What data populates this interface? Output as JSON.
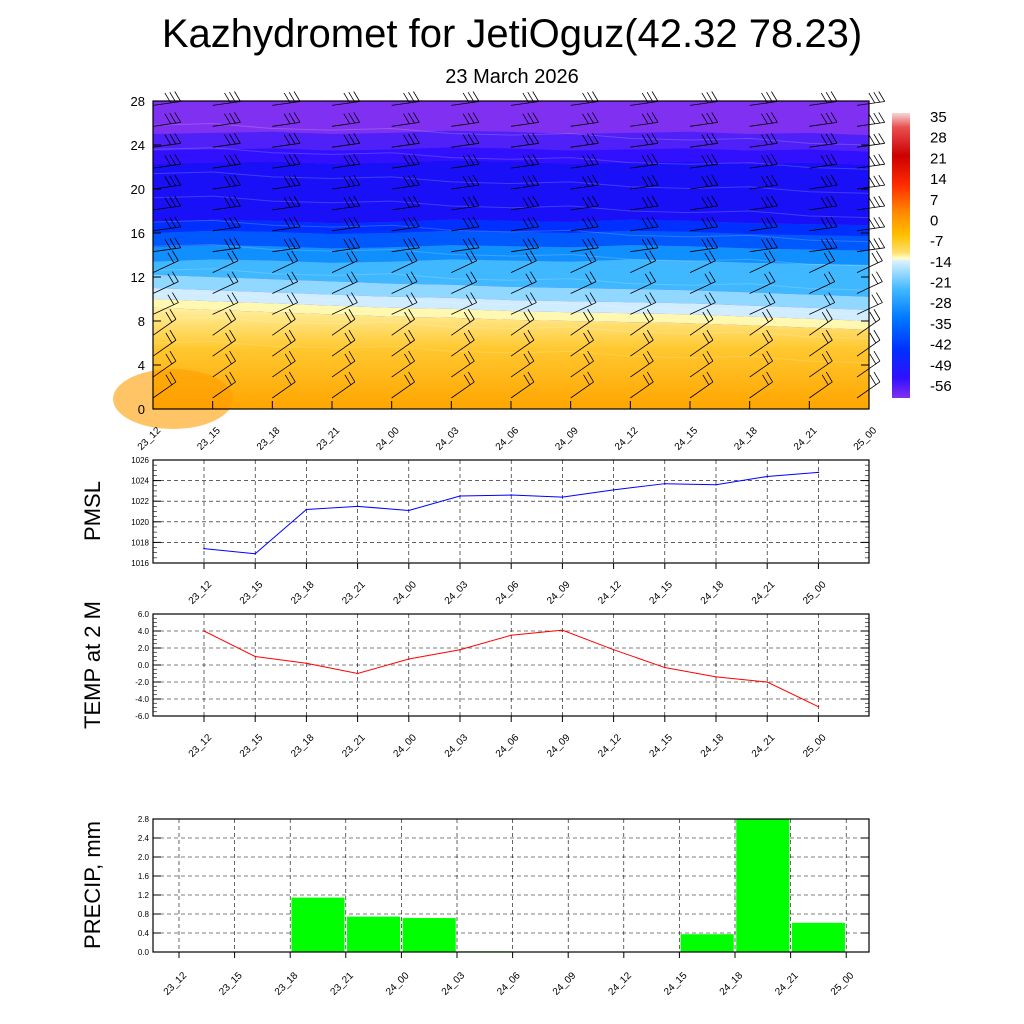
{
  "header": {
    "title": "Kazhydromet for JetiOguz(42.32 78.23)",
    "subtitle": "23 March 2026"
  },
  "chart_data": [
    {
      "type": "heatmap",
      "description_of_content": "temperature cross-section with wind barbs",
      "x_tick_labels": [
        "23_12",
        "23_15",
        "23_18",
        "23_21",
        "24_00",
        "24_03",
        "24_06",
        "24_09",
        "24_12",
        "24_15",
        "24_18",
        "24_21",
        "25_00"
      ],
      "y_ticks": [
        0,
        4,
        8,
        12,
        16,
        20,
        24,
        28
      ],
      "ylim": [
        0,
        28
      ],
      "colorbar_labels": [
        35,
        28,
        21,
        14,
        7,
        0,
        -7,
        -14,
        -21,
        -28,
        -35,
        -42,
        -49,
        -56
      ],
      "freezing_level": [
        10.0,
        9.8,
        9.6,
        9.4,
        9.2,
        9.1,
        8.9,
        8.8,
        8.7,
        8.6,
        8.4,
        8.2,
        8.0
      ],
      "cold_core_top": [
        23.5,
        23.6,
        23.7,
        23.5,
        23.6,
        23.8,
        23.7,
        23.5,
        23.6,
        23.7,
        23.5,
        23.6,
        23.4
      ],
      "cold_core_bottom": [
        16.0,
        16.2,
        16.1,
        15.9,
        16.0,
        16.2,
        16.1,
        16.0,
        16.2,
        16.1,
        15.9,
        15.8,
        15.7
      ]
    },
    {
      "type": "line",
      "ylabel": "PMSL",
      "x": [
        "23_12",
        "23_15",
        "23_18",
        "23_21",
        "24_00",
        "24_03",
        "24_06",
        "24_09",
        "24_12",
        "24_15",
        "24_18",
        "24_21",
        "25_00"
      ],
      "values": [
        1017.4,
        1016.9,
        1021.2,
        1021.5,
        1021.1,
        1022.5,
        1022.6,
        1022.4,
        1023.1,
        1023.7,
        1023.6,
        1024.4,
        1024.8
      ],
      "ylim": [
        1016,
        1026
      ],
      "y_ticks": [
        1016,
        1018,
        1020,
        1022,
        1024,
        1026
      ],
      "color": "#0000ff"
    },
    {
      "type": "line",
      "ylabel": "TEMP at 2 M",
      "x": [
        "23_12",
        "23_15",
        "23_18",
        "23_21",
        "24_00",
        "24_03",
        "24_06",
        "24_09",
        "24_12",
        "24_15",
        "24_18",
        "24_21",
        "25_00"
      ],
      "values": [
        4.0,
        1.0,
        0.2,
        -1.0,
        0.7,
        1.8,
        3.5,
        4.1,
        1.8,
        -0.3,
        -1.4,
        -2.0,
        -4.9
      ],
      "ylim": [
        -6,
        6
      ],
      "y_ticks": [
        "-6.0",
        "-4.0",
        "-2.0",
        "0.0",
        "2.0",
        "4.0",
        "6.0"
      ],
      "color": "#ff0000"
    },
    {
      "type": "bar",
      "ylabel": "PRECIP, mm",
      "categories": [
        "23_12",
        "23_15",
        "23_18",
        "23_21",
        "24_00",
        "24_03",
        "24_06",
        "24_09",
        "24_12",
        "24_15",
        "24_18",
        "24_21",
        "25_00"
      ],
      "values": [
        0,
        0,
        1.15,
        0.75,
        0.72,
        0.02,
        0,
        0,
        0,
        0.38,
        2.8,
        0.62,
        0
      ],
      "ylim": [
        0,
        2.8
      ],
      "y_ticks": [
        "0.0",
        "0.4",
        "0.8",
        "1.2",
        "1.6",
        "2.0",
        "2.4",
        "2.8"
      ],
      "color": "#00ff00"
    }
  ]
}
